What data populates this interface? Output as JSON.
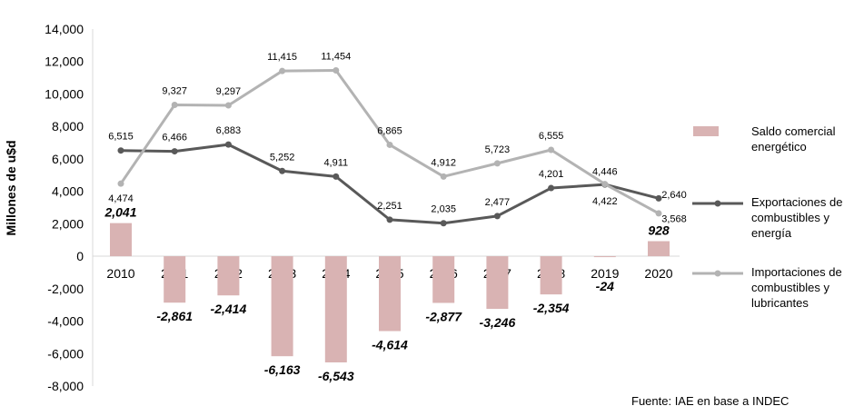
{
  "chart_data": {
    "type": "bar+line",
    "ylabel": "Millones de u$d",
    "source": "Fuente: IAE en base a INDEC",
    "ylim": [
      -8000,
      14000
    ],
    "y_ticks": [
      "14,000",
      "12,000",
      "10,000",
      "8,000",
      "6,000",
      "4,000",
      "2,000",
      "0",
      "-2,000",
      "-4,000",
      "-6,000",
      "-8,000"
    ],
    "y_tick_values": [
      14000,
      12000,
      10000,
      8000,
      6000,
      4000,
      2000,
      0,
      -2000,
      -4000,
      -6000,
      -8000
    ],
    "categories": [
      "2010",
      "2011",
      "2012",
      "2013",
      "2014",
      "2015",
      "2016",
      "2017",
      "2018",
      "2019",
      "2020"
    ],
    "series": [
      {
        "name": "Saldo comercial energético",
        "kind": "bar",
        "color": "#d9b3b3",
        "values": [
          2041,
          -2861,
          -2414,
          -6163,
          -6543,
          -4614,
          -2877,
          -3246,
          -2354,
          -24,
          928
        ],
        "labels": [
          "2,041",
          "-2,861",
          "-2,414",
          "-6,163",
          "-6,543",
          "-4,614",
          "-2,877",
          "-3,246",
          "-2,354",
          "-24",
          "928"
        ]
      },
      {
        "name": "Exportaciones de combustibles y energía",
        "kind": "line",
        "color": "#595959",
        "values": [
          6515,
          6466,
          6883,
          5252,
          4911,
          2251,
          2035,
          2477,
          4201,
          4422,
          3568
        ],
        "labels": [
          "6,515",
          "6,466",
          "6,883",
          "5,252",
          "4,911",
          "2,251",
          "2,035",
          "2,477",
          "4,201",
          "4,422",
          "3,568"
        ]
      },
      {
        "name": "Importaciones de combustibles y lubricantes",
        "kind": "line",
        "color": "#b3b3b3",
        "values": [
          4474,
          9327,
          9297,
          11415,
          11454,
          6865,
          4912,
          5723,
          6555,
          4446,
          2640
        ],
        "labels": [
          "4,474",
          "9,327",
          "9,297",
          "11,415",
          "11,454",
          "6,865",
          "4,912",
          "5,723",
          "6,555",
          "4,446",
          "2,640"
        ]
      }
    ],
    "legend": [
      {
        "lines": [
          "Saldo comercial",
          "energético"
        ]
      },
      {
        "lines": [
          "Exportaciones de",
          "combustibles y",
          "energía"
        ]
      },
      {
        "lines": [
          "Importaciones de",
          "combustibles y",
          "lubricantes"
        ]
      }
    ],
    "grid": false,
    "legend_position": "right"
  }
}
